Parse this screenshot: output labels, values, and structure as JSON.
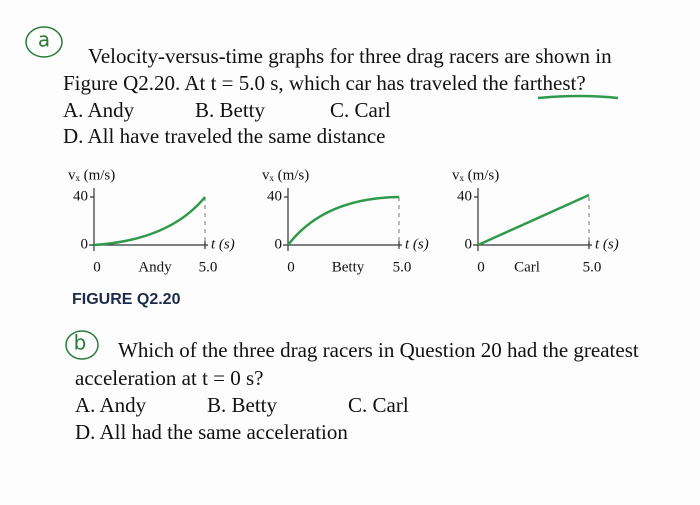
{
  "question_a": {
    "marker": "a",
    "lines": [
      "Velocity-versus-time graphs for three drag racers are shown in",
      "Figure Q2.20. At t = 5.0 s, which car has traveled the farthest?"
    ],
    "options": [
      "A. Andy",
      "B. Betty",
      "C. Carl",
      "D. All have traveled the same distance"
    ]
  },
  "figure": {
    "graphs": [
      {
        "y_label": "vₓ (m/s)",
        "y_top": "40",
        "y_zero": "0",
        "x_zero": "0",
        "x_end": "5.0",
        "x_label": "t (s)",
        "name": "Andy"
      },
      {
        "y_label": "vₓ (m/s)",
        "y_top": "40",
        "y_zero": "0",
        "x_zero": "0",
        "x_end": "5.0",
        "x_label": "t (s)",
        "name": "Betty"
      },
      {
        "y_label": "vₓ (m/s)",
        "y_top": "40",
        "y_zero": "0",
        "x_zero": "0",
        "x_end": "5.0",
        "x_label": "t (s)",
        "name": "Carl"
      }
    ],
    "caption": "FIGURE Q2.20"
  },
  "question_b": {
    "marker": "b",
    "lines": [
      "Which of the three drag racers in Question 20 had the greatest",
      "acceleration at t = 0 s?"
    ],
    "options": [
      "A. Andy",
      "B. Betty",
      "C. Carl",
      "D. All had the same acceleration"
    ]
  }
}
